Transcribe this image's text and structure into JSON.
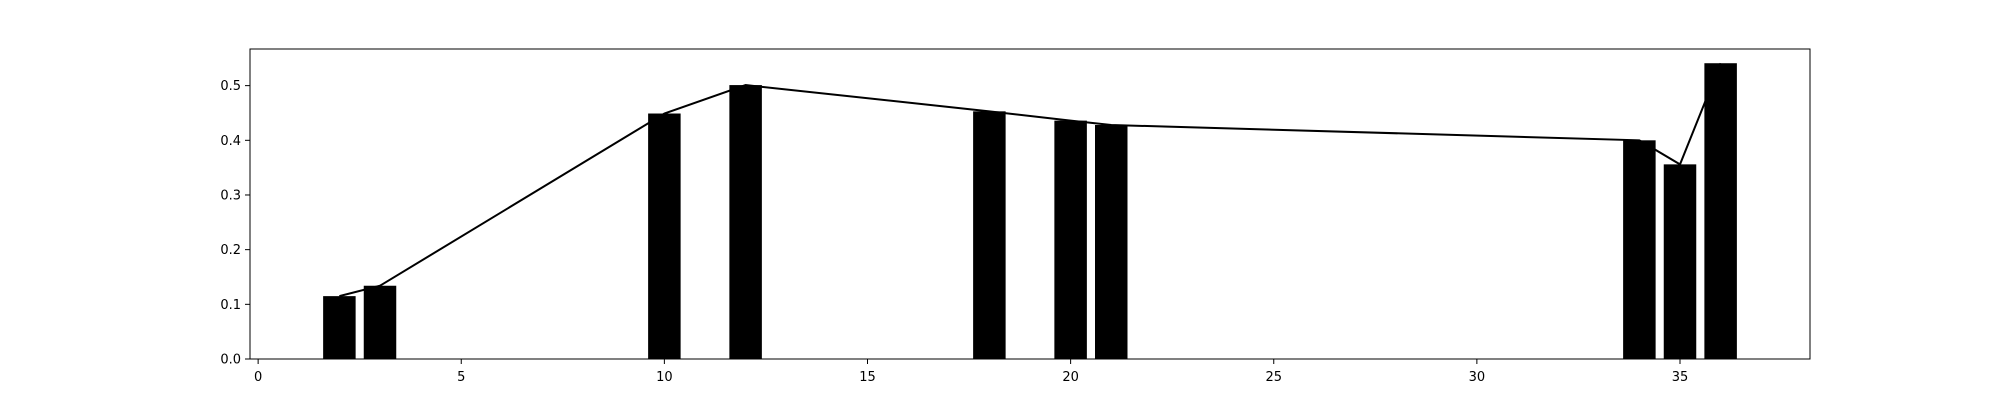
{
  "chart_data": {
    "type": "bar",
    "title": "",
    "xlabel": "",
    "ylabel": "",
    "xlim": [
      -0.2,
      38.2
    ],
    "ylim": [
      0,
      0.567
    ],
    "grid": false,
    "bar_color": "#000000",
    "line_color": "#000000",
    "bar_width": 0.8,
    "x": [
      2,
      3,
      10,
      12,
      18,
      20,
      21,
      34,
      35,
      36
    ],
    "values": [
      0.115,
      0.134,
      0.449,
      0.501,
      0.453,
      0.436,
      0.428,
      0.4,
      0.356,
      0.541
    ],
    "line": {
      "x": [
        2,
        3,
        10,
        12,
        18,
        20,
        21,
        34,
        35,
        36
      ],
      "values": [
        0.115,
        0.134,
        0.449,
        0.501,
        0.453,
        0.436,
        0.428,
        0.4,
        0.356,
        0.541
      ]
    },
    "x_ticks": [
      0,
      5,
      10,
      15,
      20,
      25,
      30,
      35
    ],
    "x_tick_labels": [
      "0",
      "5",
      "10",
      "15",
      "20",
      "25",
      "30",
      "35"
    ],
    "y_ticks": [
      0.0,
      0.1,
      0.2,
      0.3,
      0.4,
      0.5
    ],
    "y_tick_labels": [
      "0.0",
      "0.1",
      "0.2",
      "0.3",
      "0.4",
      "0.5"
    ]
  }
}
